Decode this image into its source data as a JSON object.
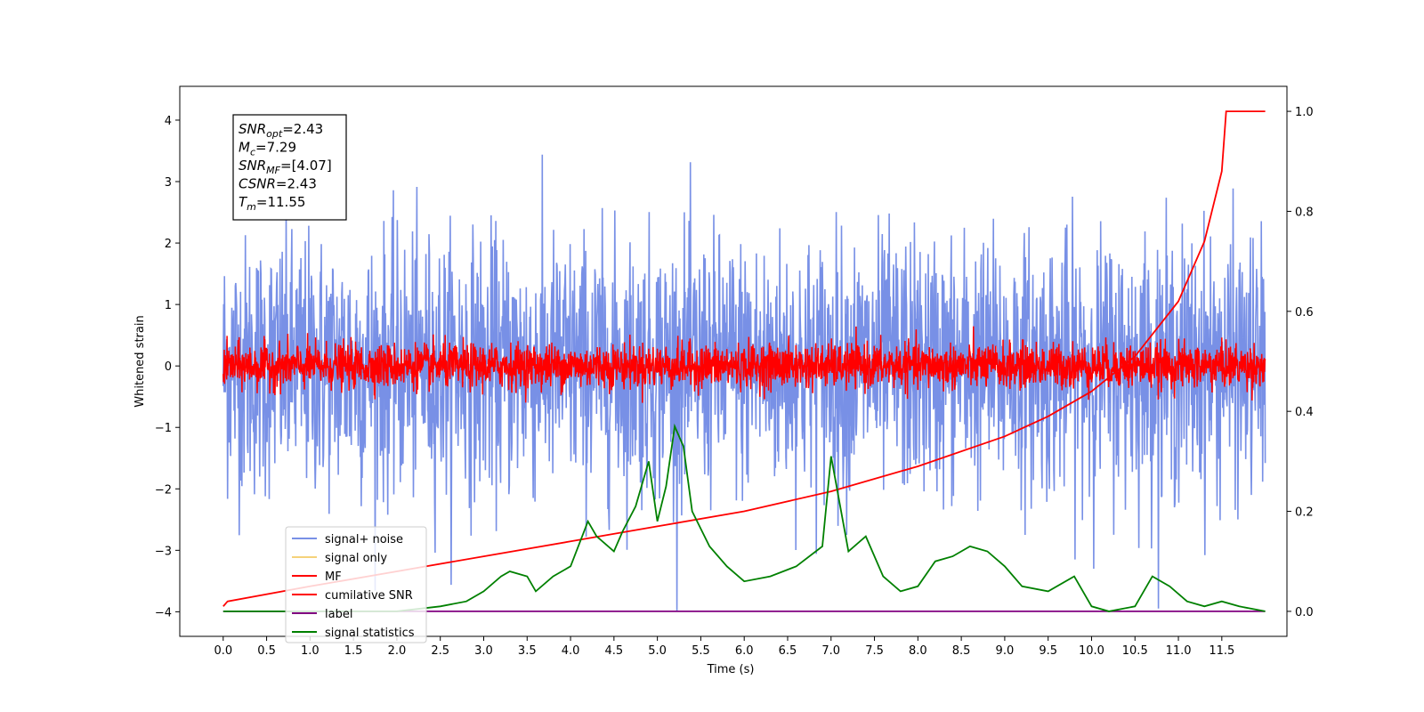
{
  "chart_data": {
    "type": "line",
    "xlabel": "Time (s)",
    "ylabel_left": "Whitened strain",
    "ylabel_right": "",
    "xlim": [
      -0.5,
      12.25
    ],
    "ylim_left": [
      -4.4,
      4.55
    ],
    "ylim_right": [
      -0.05,
      1.05
    ],
    "x_ticks": [
      "0.0",
      "0.5",
      "1.0",
      "1.5",
      "2.0",
      "2.5",
      "3.0",
      "3.5",
      "4.0",
      "4.5",
      "5.0",
      "5.5",
      "6.0",
      "6.5",
      "7.0",
      "7.5",
      "8.0",
      "8.5",
      "9.0",
      "9.5",
      "10.0",
      "10.5",
      "11.0",
      "11.5"
    ],
    "y_ticks_left": [
      "4",
      "3",
      "2",
      "1",
      "0",
      "−1",
      "−2",
      "−3",
      "−4"
    ],
    "y_ticks_right": [
      "1.0",
      "0.8",
      "0.6",
      "0.4",
      "0.2",
      "0.0"
    ],
    "grid": false,
    "legend_position": "lower-left",
    "annotation": [
      {
        "name": "SNR",
        "sub": "opt",
        "value": "=2.43"
      },
      {
        "name": "M",
        "sub": "c",
        "value": "=7.29"
      },
      {
        "name": "SNR",
        "sub": "MF",
        "value": "=[4.07]"
      },
      {
        "name": "CSNR",
        "sub": "",
        "value": "=2.43"
      },
      {
        "name": "T",
        "sub": "m",
        "value": "=11.55"
      }
    ],
    "series": [
      {
        "name": "signal+ noise",
        "color": "#7890e6",
        "axis": "left",
        "description_range": [
          -4.0,
          4.2
        ]
      },
      {
        "name": "signal only",
        "color": "#f5d27a",
        "axis": "left"
      },
      {
        "name": "MF",
        "color": "#ff0000",
        "axis": "left",
        "description_range": [
          -0.6,
          1.0
        ]
      },
      {
        "name": "cumilative SNR",
        "color": "#ff0000",
        "axis": "right",
        "x": [
          0.0,
          0.05,
          1.0,
          2.0,
          3.0,
          4.0,
          5.0,
          6.0,
          7.0,
          8.0,
          9.0,
          9.5,
          10.0,
          10.5,
          11.0,
          11.3,
          11.5,
          11.55,
          12.0
        ],
        "y": [
          0.01,
          0.02,
          0.05,
          0.08,
          0.11,
          0.14,
          0.17,
          0.2,
          0.24,
          0.29,
          0.35,
          0.39,
          0.44,
          0.51,
          0.62,
          0.74,
          0.88,
          1.0,
          1.0
        ]
      },
      {
        "name": "label",
        "color": "#800080",
        "axis": "right",
        "x": [
          0.0,
          12.0
        ],
        "y": [
          0.0,
          0.0
        ]
      },
      {
        "name": "signal statistics",
        "color": "#008000",
        "axis": "right",
        "x": [
          0.0,
          2.0,
          2.5,
          2.8,
          3.0,
          3.2,
          3.3,
          3.5,
          3.6,
          3.8,
          4.0,
          4.2,
          4.3,
          4.5,
          4.6,
          4.75,
          4.9,
          5.0,
          5.1,
          5.2,
          5.3,
          5.4,
          5.6,
          5.8,
          6.0,
          6.3,
          6.6,
          6.9,
          7.0,
          7.2,
          7.4,
          7.6,
          7.8,
          8.0,
          8.2,
          8.4,
          8.6,
          8.8,
          9.0,
          9.2,
          9.5,
          9.8,
          10.0,
          10.2,
          10.5,
          10.7,
          10.9,
          11.1,
          11.3,
          11.5,
          11.7,
          12.0
        ],
        "y": [
          0.0,
          0.0,
          0.01,
          0.02,
          0.04,
          0.07,
          0.08,
          0.07,
          0.04,
          0.07,
          0.09,
          0.18,
          0.15,
          0.12,
          0.16,
          0.21,
          0.3,
          0.18,
          0.25,
          0.37,
          0.33,
          0.2,
          0.13,
          0.09,
          0.06,
          0.07,
          0.09,
          0.13,
          0.31,
          0.12,
          0.15,
          0.07,
          0.04,
          0.05,
          0.1,
          0.11,
          0.13,
          0.12,
          0.09,
          0.05,
          0.04,
          0.07,
          0.01,
          0.0,
          0.01,
          0.07,
          0.05,
          0.02,
          0.01,
          0.02,
          0.01,
          0.0
        ]
      }
    ]
  }
}
